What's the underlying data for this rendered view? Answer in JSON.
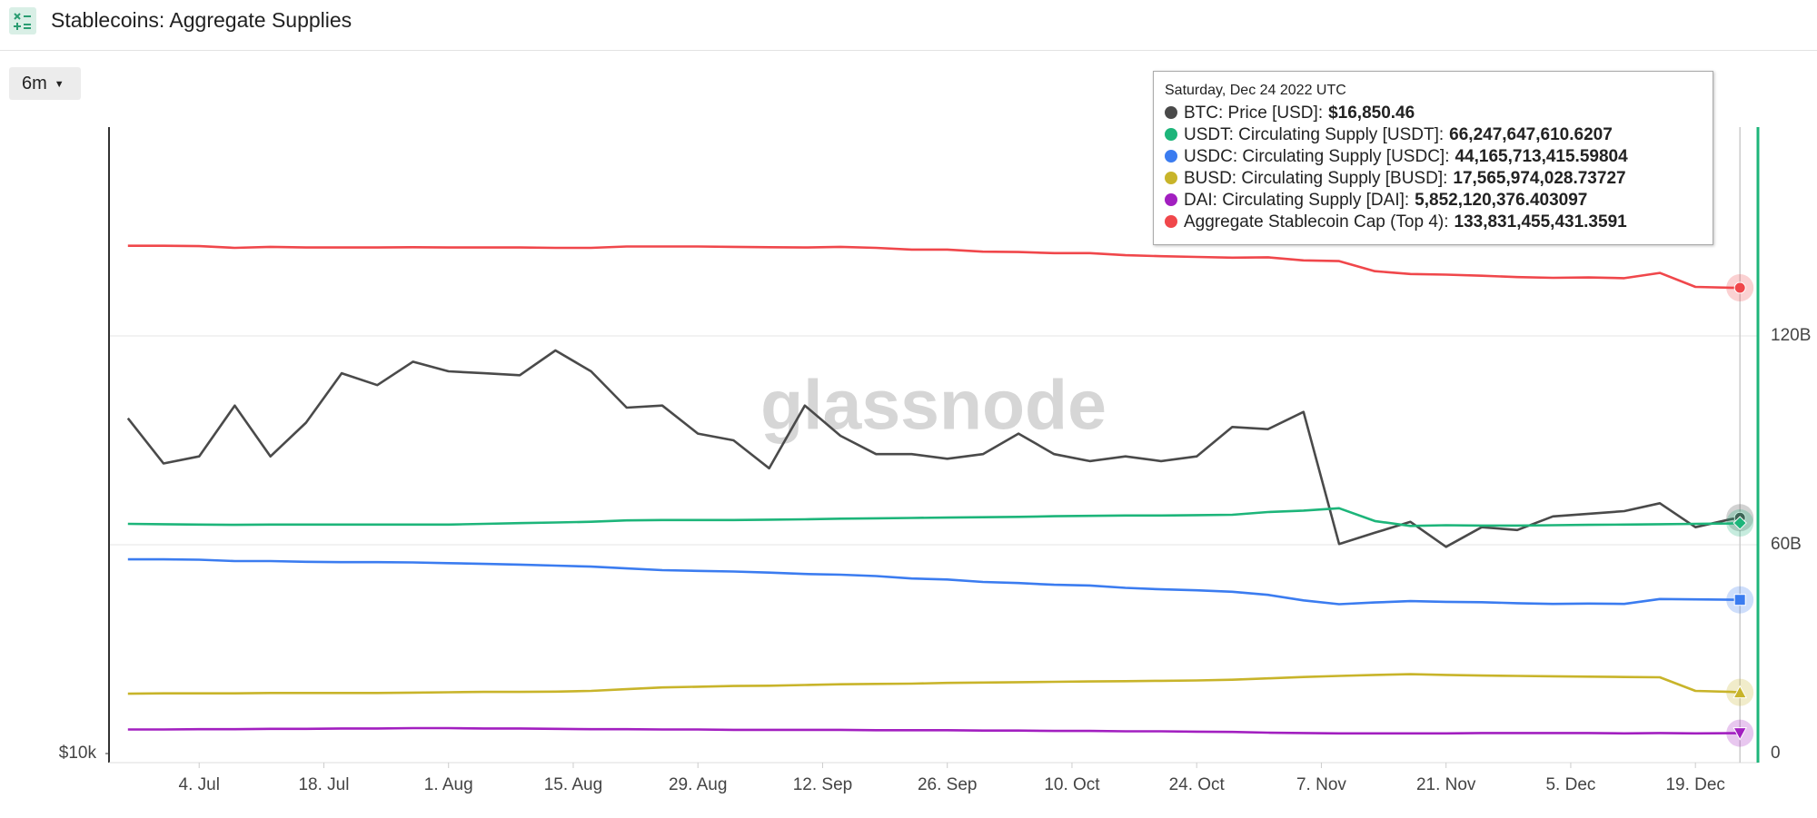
{
  "header": {
    "title": "Stablecoins: Aggregate Supplies",
    "range_button": "6m"
  },
  "chart_data": {
    "type": "line",
    "watermark": "glassnode",
    "ylog": true,
    "grid": true,
    "x": [
      "2022-06-26",
      "2022-06-30",
      "2022-07-04",
      "2022-07-08",
      "2022-07-12",
      "2022-07-16",
      "2022-07-20",
      "2022-07-24",
      "2022-07-28",
      "2022-08-01",
      "2022-08-05",
      "2022-08-09",
      "2022-08-13",
      "2022-08-17",
      "2022-08-21",
      "2022-08-25",
      "2022-08-29",
      "2022-09-02",
      "2022-09-06",
      "2022-09-10",
      "2022-09-14",
      "2022-09-18",
      "2022-09-22",
      "2022-09-26",
      "2022-09-30",
      "2022-10-04",
      "2022-10-08",
      "2022-10-12",
      "2022-10-16",
      "2022-10-20",
      "2022-10-24",
      "2022-10-28",
      "2022-11-01",
      "2022-11-05",
      "2022-11-09",
      "2022-11-13",
      "2022-11-17",
      "2022-11-21",
      "2022-11-25",
      "2022-11-29",
      "2022-12-03",
      "2022-12-07",
      "2022-12-11",
      "2022-12-15",
      "2022-12-19",
      "2022-12-23",
      "2022-12-24"
    ],
    "xlim": [
      "2022-06-25",
      "2022-12-25"
    ],
    "xticks": [
      {
        "value": "2022-07-04",
        "label": "4. Jul"
      },
      {
        "value": "2022-07-18",
        "label": "18. Jul"
      },
      {
        "value": "2022-08-01",
        "label": "1. Aug"
      },
      {
        "value": "2022-08-15",
        "label": "15. Aug"
      },
      {
        "value": "2022-08-29",
        "label": "29. Aug"
      },
      {
        "value": "2022-09-12",
        "label": "12. Sep"
      },
      {
        "value": "2022-09-26",
        "label": "26. Sep"
      },
      {
        "value": "2022-10-10",
        "label": "10. Oct"
      },
      {
        "value": "2022-10-24",
        "label": "24. Oct"
      },
      {
        "value": "2022-11-07",
        "label": "7. Nov"
      },
      {
        "value": "2022-11-21",
        "label": "21. Nov"
      },
      {
        "value": "2022-12-05",
        "label": "5. Dec"
      },
      {
        "value": "2022-12-19",
        "label": "19. Dec"
      }
    ],
    "ylim": [
      10000,
      40000
    ],
    "yticks": [
      {
        "value": 10000,
        "label": "$10k"
      }
    ],
    "y2lim": [
      0,
      180000000000.0
    ],
    "y2ticks": [
      0,
      {
        "value": 60000000000.0,
        "label": "60B"
      },
      {
        "value": 120000000000.0,
        "label": "120B"
      }
    ],
    "series": [
      {
        "name": "BTC: Price [USD]",
        "color": "#4a4a4a",
        "axis": "y",
        "marker": "circle",
        "values": [
          21000,
          19000,
          19300,
          21600,
          19300,
          20800,
          23200,
          22600,
          23800,
          23300,
          23200,
          23100,
          24400,
          23300,
          21500,
          21600,
          20300,
          20000,
          18800,
          21600,
          20200,
          19400,
          19400,
          19200,
          19400,
          20300,
          19400,
          19100,
          19300,
          19100,
          19300,
          20600,
          20500,
          21300,
          15900,
          16300,
          16700,
          15800,
          16500,
          16400,
          16900,
          17000,
          17100,
          17400,
          16500,
          16800,
          16850.46
        ]
      },
      {
        "name": "USDT: Circulating Supply [USDT]",
        "color": "#1db57a",
        "axis": "y2",
        "marker": "diamond",
        "values": [
          66000000000.0,
          65900000000.0,
          65800000000.0,
          65700000000.0,
          65800000000.0,
          65800000000.0,
          65800000000.0,
          65800000000.0,
          65800000000.0,
          65800000000.0,
          66000000000.0,
          66200000000.0,
          66400000000.0,
          66600000000.0,
          67000000000.0,
          67100000000.0,
          67100000000.0,
          67100000000.0,
          67200000000.0,
          67300000000.0,
          67500000000.0,
          67600000000.0,
          67700000000.0,
          67800000000.0,
          67900000000.0,
          68000000000.0,
          68200000000.0,
          68300000000.0,
          68400000000.0,
          68400000000.0,
          68500000000.0,
          68600000000.0,
          69400000000.0,
          69800000000.0,
          70500000000.0,
          66800000000.0,
          65400000000.0,
          65600000000.0,
          65500000000.0,
          65500000000.0,
          65600000000.0,
          65700000000.0,
          65800000000.0,
          65900000000.0,
          66000000000.0,
          66100000000.0,
          66247647610.6207
        ]
      },
      {
        "name": "USDC: Circulating Supply [USDC]",
        "color": "#3b7cf0",
        "axis": "y2",
        "marker": "square",
        "values": [
          55800000000.0,
          55800000000.0,
          55700000000.0,
          55300000000.0,
          55300000000.0,
          55100000000.0,
          55000000000.0,
          55000000000.0,
          54900000000.0,
          54700000000.0,
          54500000000.0,
          54300000000.0,
          54000000000.0,
          53700000000.0,
          53200000000.0,
          52700000000.0,
          52500000000.0,
          52300000000.0,
          52000000000.0,
          51600000000.0,
          51400000000.0,
          51000000000.0,
          50300000000.0,
          50000000000.0,
          49300000000.0,
          49000000000.0,
          48500000000.0,
          48300000000.0,
          47600000000.0,
          47200000000.0,
          46900000000.0,
          46500000000.0,
          45600000000.0,
          44000000000.0,
          42900000000.0,
          43400000000.0,
          43800000000.0,
          43600000000.0,
          43500000000.0,
          43200000000.0,
          43000000000.0,
          43100000000.0,
          43000000000.0,
          44400000000.0,
          44300000000.0,
          44200000000.0,
          44165713415.59804
        ]
      },
      {
        "name": "BUSD: Circulating Supply [BUSD]",
        "color": "#c8b42a",
        "axis": "y2",
        "marker": "triangle",
        "values": [
          17200000000.0,
          17300000000.0,
          17300000000.0,
          17300000000.0,
          17400000000.0,
          17400000000.0,
          17400000000.0,
          17400000000.0,
          17500000000.0,
          17600000000.0,
          17700000000.0,
          17700000000.0,
          17800000000.0,
          18000000000.0,
          18500000000.0,
          19000000000.0,
          19200000000.0,
          19400000000.0,
          19500000000.0,
          19700000000.0,
          19900000000.0,
          20000000000.0,
          20100000000.0,
          20300000000.0,
          20400000000.0,
          20500000000.0,
          20600000000.0,
          20700000000.0,
          20800000000.0,
          20900000000.0,
          21000000000.0,
          21200000000.0,
          21600000000.0,
          22000000000.0,
          22300000000.0,
          22600000000.0,
          22800000000.0,
          22600000000.0,
          22400000000.0,
          22300000000.0,
          22200000000.0,
          22100000000.0,
          22000000000.0,
          21900000000.0,
          18000000000.0,
          17700000000.0,
          17565974028.73727
        ]
      },
      {
        "name": "DAI: Circulating Supply [DAI]",
        "color": "#a21fc0",
        "axis": "y2",
        "marker": "triangle-down",
        "values": [
          6900000000.0,
          6900000000.0,
          7000000000.0,
          7000000000.0,
          7100000000.0,
          7100000000.0,
          7200000000.0,
          7200000000.0,
          7300000000.0,
          7300000000.0,
          7200000000.0,
          7200000000.0,
          7100000000.0,
          7000000000.0,
          7000000000.0,
          6900000000.0,
          6900000000.0,
          6800000000.0,
          6800000000.0,
          6800000000.0,
          6800000000.0,
          6700000000.0,
          6700000000.0,
          6700000000.0,
          6600000000.0,
          6600000000.0,
          6500000000.0,
          6500000000.0,
          6400000000.0,
          6400000000.0,
          6300000000.0,
          6200000000.0,
          6000000000.0,
          5900000000.0,
          5800000000.0,
          5800000000.0,
          5800000000.0,
          5800000000.0,
          5900000000.0,
          5900000000.0,
          5900000000.0,
          5900000000.0,
          5800000000.0,
          5900000000.0,
          5800000000.0,
          5850000000.0,
          5852120376.403097
        ]
      },
      {
        "name": "Aggregate Stablecoin Cap (Top 4)",
        "color": "#f0474b",
        "axis": "y2",
        "marker": "circle",
        "values": [
          145900000000.0,
          145900000000.0,
          145800000000.0,
          145300000000.0,
          145600000000.0,
          145400000000.0,
          145400000000.0,
          145400000000.0,
          145500000000.0,
          145400000000.0,
          145400000000.0,
          145400000000.0,
          145300000000.0,
          145300000000.0,
          145700000000.0,
          145700000000.0,
          145700000000.0,
          145600000000.0,
          145500000000.0,
          145400000000.0,
          145600000000.0,
          145300000000.0,
          144800000000.0,
          144800000000.0,
          144200000000.0,
          144100000000.0,
          143800000000.0,
          143800000000.0,
          143200000000.0,
          142900000000.0,
          142700000000.0,
          142500000000.0,
          142600000000.0,
          141700000000.0,
          141500000000.0,
          138600000000.0,
          137800000000.0,
          137600000000.0,
          137300000000.0,
          136900000000.0,
          136700000000.0,
          136800000000.0,
          136600000000.0,
          138100000000.0,
          134100000000.0,
          133850000000.0,
          133831455431.3591
        ]
      }
    ]
  },
  "tooltip": {
    "date": "Saturday, Dec 24 2022 UTC",
    "values": [
      "$16,850.46",
      "66,247,647,610.6207",
      "44,165,713,415.59804",
      "17,565,974,028.73727",
      "5,852,120,376.403097",
      "133,831,455,431.3591"
    ]
  }
}
